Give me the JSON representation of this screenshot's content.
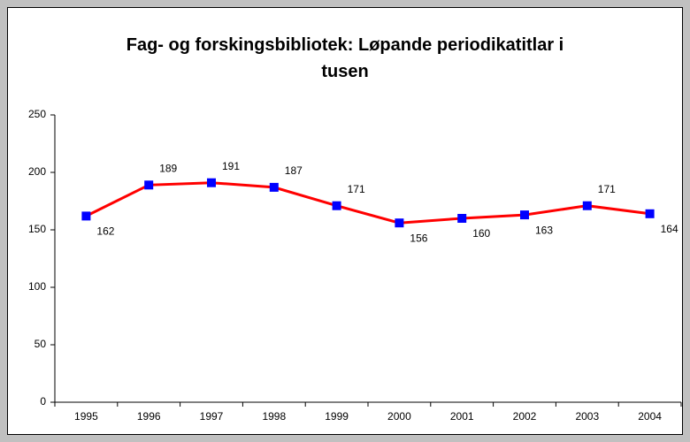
{
  "chart_data": {
    "type": "line",
    "title": "Fag- og forskingsbibliotek: Løpande periodikatitlar i tusen",
    "categories": [
      "1995",
      "1996",
      "1997",
      "1998",
      "1999",
      "2000",
      "2001",
      "2002",
      "2003",
      "2004"
    ],
    "series": [
      {
        "name": "Løpande periodikatitlar",
        "color": "#ff0000",
        "marker_color": "#0000ff",
        "values": [
          162,
          189,
          191,
          187,
          171,
          156,
          160,
          163,
          171,
          164
        ]
      }
    ],
    "ylim": [
      0,
      250
    ],
    "yticks": [
      0,
      50,
      100,
      150,
      200,
      250
    ],
    "grid": false,
    "legend": false
  }
}
